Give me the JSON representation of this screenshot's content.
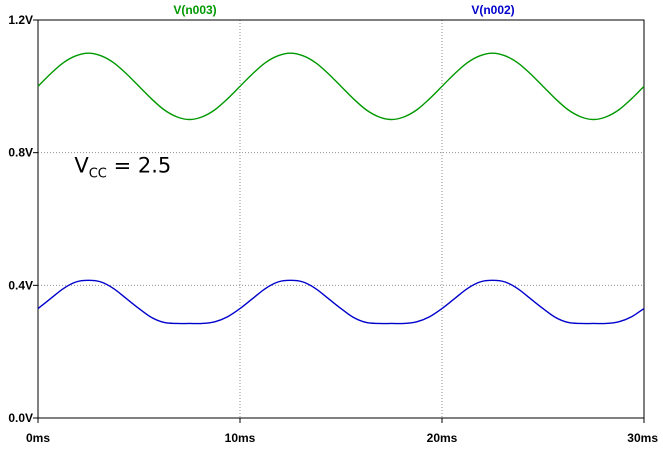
{
  "chart_data": {
    "type": "line",
    "x_unit": "ms",
    "y_unit": "V",
    "xlim": [
      0,
      30
    ],
    "ylim": [
      0,
      1.2
    ],
    "x_ticks": [
      {
        "value": 0,
        "label": "0ms"
      },
      {
        "value": 10,
        "label": "10ms"
      },
      {
        "value": 20,
        "label": "20ms"
      },
      {
        "value": 30,
        "label": "30ms"
      }
    ],
    "y_ticks": [
      {
        "value": 0.0,
        "label": "0.0V"
      },
      {
        "value": 0.4,
        "label": "0.4V"
      },
      {
        "value": 0.8,
        "label": "0.8V"
      },
      {
        "value": 1.2,
        "label": "1.2V"
      }
    ],
    "grid": true,
    "series": [
      {
        "name": "V(n003)",
        "color": "#009900",
        "x": [
          0,
          0.625,
          1.25,
          1.875,
          2.5,
          3.125,
          3.75,
          4.375,
          5,
          5.625,
          6.25,
          6.875,
          7.5,
          8.125,
          8.75,
          9.375,
          10,
          10.625,
          11.25,
          11.875,
          12.5,
          13.125,
          13.75,
          14.375,
          15,
          15.625,
          16.25,
          16.875,
          17.5,
          18.125,
          18.75,
          19.375,
          20,
          20.625,
          21.25,
          21.875,
          22.5,
          23.125,
          23.75,
          24.375,
          25,
          25.625,
          26.25,
          26.875,
          27.5,
          28.125,
          28.75,
          29.375,
          30
        ],
        "values": [
          1.0,
          1.038,
          1.071,
          1.092,
          1.1,
          1.092,
          1.071,
          1.038,
          1.0,
          0.962,
          0.929,
          0.908,
          0.9,
          0.908,
          0.929,
          0.962,
          1.0,
          1.038,
          1.071,
          1.092,
          1.1,
          1.092,
          1.071,
          1.038,
          1.0,
          0.962,
          0.929,
          0.908,
          0.9,
          0.908,
          0.929,
          0.962,
          1.0,
          1.038,
          1.071,
          1.092,
          1.1,
          1.092,
          1.071,
          1.038,
          1.0,
          0.962,
          0.929,
          0.908,
          0.9,
          0.908,
          0.929,
          0.962,
          1.0
        ]
      },
      {
        "name": "V(n002)",
        "color": "#0000cc",
        "x": [
          0,
          0.625,
          1.25,
          1.875,
          2.5,
          3.125,
          3.75,
          4.375,
          5,
          5.625,
          6.25,
          6.875,
          7.5,
          8.125,
          8.75,
          9.375,
          10,
          10.625,
          11.25,
          11.875,
          12.5,
          13.125,
          13.75,
          14.375,
          15,
          15.625,
          16.25,
          16.875,
          17.5,
          18.125,
          18.75,
          19.375,
          20,
          20.625,
          21.25,
          21.875,
          22.5,
          23.125,
          23.75,
          24.375,
          25,
          25.625,
          26.25,
          26.875,
          27.5,
          28.125,
          28.75,
          29.375,
          30
        ],
        "values": [
          0.33,
          0.36,
          0.39,
          0.41,
          0.415,
          0.41,
          0.39,
          0.36,
          0.33,
          0.303,
          0.288,
          0.285,
          0.285,
          0.285,
          0.29,
          0.305,
          0.33,
          0.36,
          0.39,
          0.41,
          0.415,
          0.41,
          0.39,
          0.36,
          0.33,
          0.303,
          0.288,
          0.285,
          0.285,
          0.285,
          0.29,
          0.305,
          0.33,
          0.36,
          0.39,
          0.41,
          0.415,
          0.41,
          0.39,
          0.36,
          0.33,
          0.303,
          0.288,
          0.285,
          0.285,
          0.285,
          0.29,
          0.305,
          0.33
        ]
      }
    ],
    "annotation": {
      "main": "V",
      "subscript": "CC",
      "rest": " = 2.5",
      "x": 1.8,
      "y": 0.74
    }
  }
}
